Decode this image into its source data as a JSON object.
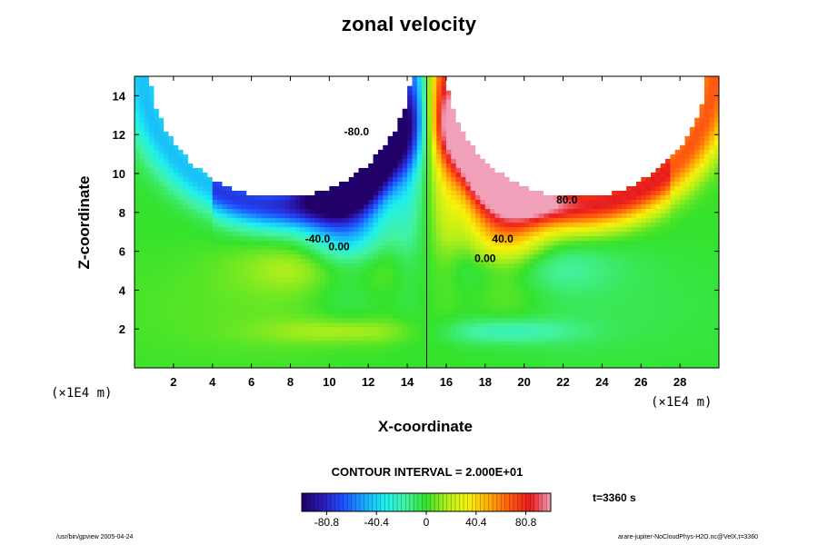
{
  "title": "zonal velocity",
  "axes": {
    "xlabel": "X-coordinate",
    "ylabel": "Z-coordinate",
    "x_unit": "(×1E4 m)",
    "y_unit": "(×1E4 m)"
  },
  "colorbar": {
    "contour_interval": "CONTOUR INTERVAL = 2.000E+01",
    "tick_labels": [
      "-80.8",
      "-40.4",
      "0",
      "40.4",
      "80.8"
    ],
    "ticks": [
      -80.8,
      -40.4,
      0,
      40.4,
      80.8
    ],
    "range": [
      -101,
      101
    ],
    "colors": [
      "#200068",
      "#2a1ab8",
      "#1e50ff",
      "#19a8ff",
      "#1ef0ee",
      "#44f2a2",
      "#34e22c",
      "#b4ee1a",
      "#f6f20c",
      "#ffae08",
      "#ff5a10",
      "#e81a1a",
      "#f0a0b8"
    ]
  },
  "time_label": "t=3360 s",
  "footer": {
    "left": "/usr/bin/gpview 2005-04-24",
    "right": "arare-jupiter-NoCloudPhys-H2O.nc@VelX,t=3360"
  },
  "chart_data": {
    "type": "heatmap",
    "title": "zonal velocity",
    "xlabel": "X-coordinate",
    "ylabel": "Z-coordinate",
    "xlim": [
      0,
      30
    ],
    "ylim": [
      0,
      15
    ],
    "x_ticks": [
      2,
      4,
      6,
      8,
      10,
      12,
      14,
      16,
      18,
      20,
      22,
      24,
      26,
      28
    ],
    "y_ticks": [
      2,
      4,
      6,
      8,
      10,
      12,
      14
    ],
    "color_range": [
      -101,
      101
    ],
    "contour_interval": 20,
    "contour_labels": [
      {
        "text": "-80.0",
        "x": 11.4,
        "y": 12.1
      },
      {
        "text": "-40.0",
        "x": 9.4,
        "y": 6.6
      },
      {
        "text": "0.00",
        "x": 10.5,
        "y": 6.2
      },
      {
        "text": "80.0",
        "x": 22.2,
        "y": 8.6
      },
      {
        "text": "40.0",
        "x": 18.9,
        "y": 6.6
      },
      {
        "text": "0.00",
        "x": 18.0,
        "y": 5.6
      }
    ],
    "features": [
      {
        "region": "no-data cap, left",
        "center_x": 7.5,
        "center_y": 15.5,
        "radius": 6.7
      },
      {
        "region": "no-data cap, right",
        "center_x": 22.7,
        "center_y": 15.5,
        "radius": 6.7
      },
      {
        "region": "strong westward jet",
        "x": 10.5,
        "z": 9.5,
        "value": -95
      },
      {
        "region": "strong eastward jet",
        "x": 19.5,
        "z": 9.5,
        "value": 95
      },
      {
        "region": "weak positive cell",
        "x": 10,
        "z": 5.2,
        "value": 18
      },
      {
        "region": "weak negative cell",
        "x": 20,
        "z": 5.2,
        "value": -18
      },
      {
        "region": "low-level positive cell",
        "x": 11,
        "z": 1.9,
        "value": 15
      },
      {
        "region": "low-level negative cell",
        "x": 19,
        "z": 1.9,
        "value": -20
      }
    ]
  }
}
